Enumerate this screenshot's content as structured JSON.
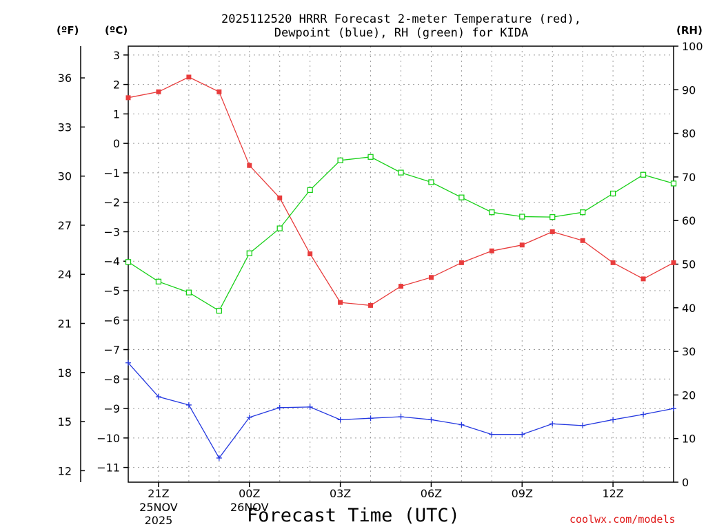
{
  "chart_data": {
    "type": "line",
    "title_line1": "2025112520 HRRR Forecast 2-meter Temperature (red),",
    "title_line2": "Dewpoint (blue), RH (green) for KIDA",
    "xlabel": "Forecast Time (UTC)",
    "credit": "coolwx.com/models",
    "unit_labels": {
      "fahrenheit": "(ºF)",
      "celsius": "(ºC)",
      "rh": "(RH)"
    },
    "x_hours": [
      20,
      21,
      22,
      23,
      24,
      25,
      26,
      27,
      28,
      29,
      30,
      31,
      32,
      33,
      34,
      35,
      36,
      37,
      38
    ],
    "x_range": [
      20,
      38
    ],
    "celsius_range": [
      -11.5,
      3.3
    ],
    "rh_range": [
      0,
      100
    ],
    "x_ticks": [
      {
        "hour": 21,
        "label": "21Z",
        "line2": "25NOV",
        "line3": "2025"
      },
      {
        "hour": 24,
        "label": "00Z",
        "line2": "26NOV",
        "line3": ""
      },
      {
        "hour": 27,
        "label": "03Z",
        "line2": "",
        "line3": ""
      },
      {
        "hour": 30,
        "label": "06Z",
        "line2": "",
        "line3": ""
      },
      {
        "hour": 33,
        "label": "09Z",
        "line2": "",
        "line3": ""
      },
      {
        "hour": 36,
        "label": "12Z",
        "line2": "",
        "line3": ""
      }
    ],
    "celsius_ticks": [
      3,
      2,
      1,
      0,
      -1,
      -2,
      -3,
      -4,
      -5,
      -6,
      -7,
      -8,
      -9,
      -10,
      -11
    ],
    "celsius_tick_labels": [
      "3",
      "2",
      "1",
      "0",
      "−1",
      "−2",
      "−3",
      "−4",
      "−5",
      "−6",
      "−7",
      "−8",
      "−9",
      "−10",
      "−11"
    ],
    "fahrenheit_ticks": [
      36,
      33,
      30,
      27,
      24,
      21,
      18,
      15,
      12
    ],
    "rh_ticks": [
      100,
      90,
      80,
      70,
      60,
      50,
      40,
      30,
      20,
      10,
      0
    ],
    "series": [
      {
        "name": "Temperature",
        "unit": "C",
        "color": "#e83c3c",
        "marker": "filled-square",
        "values": [
          1.55,
          1.75,
          2.25,
          1.75,
          -0.75,
          -1.85,
          -3.75,
          -5.4,
          -5.5,
          -4.85,
          -4.55,
          -4.05,
          -3.65,
          -3.45,
          -3.0,
          -3.3,
          -4.05,
          -4.6,
          -4.05
        ]
      },
      {
        "name": "Dewpoint",
        "unit": "C",
        "color": "#2438e0",
        "marker": "plus",
        "values": [
          -7.45,
          -8.6,
          -8.88,
          -10.68,
          -9.3,
          -8.97,
          -8.95,
          -9.38,
          -9.33,
          -9.28,
          -9.38,
          -9.55,
          -9.88,
          -9.88,
          -9.52,
          -9.58,
          -9.38,
          -9.2,
          -9.0
        ]
      },
      {
        "name": "RH",
        "unit": "%",
        "color": "#18d018",
        "marker": "open-square",
        "values": [
          50.5,
          46.0,
          43.5,
          39.3,
          52.5,
          58.2,
          67.0,
          73.8,
          74.6,
          71.0,
          68.8,
          65.3,
          61.9,
          60.9,
          60.8,
          61.9,
          66.2,
          70.5,
          68.5
        ]
      }
    ]
  }
}
